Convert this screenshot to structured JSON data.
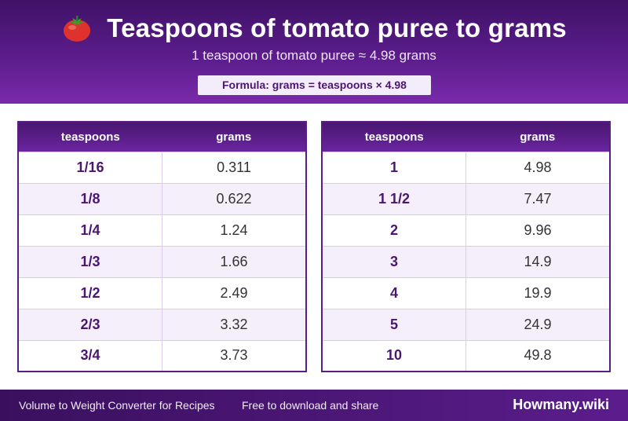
{
  "header": {
    "icon": "tomato-icon",
    "title": "Teaspoons of tomato puree to grams",
    "subtitle": "1 teaspoon of tomato puree ≈ 4.98 grams",
    "formula": "Formula: grams = teaspoons × 4.98"
  },
  "tables": {
    "left": {
      "col1": "teaspoons",
      "col2": "grams",
      "rows": [
        {
          "tsp": "1/16",
          "g": "0.311"
        },
        {
          "tsp": "1/8",
          "g": "0.622"
        },
        {
          "tsp": "1/4",
          "g": "1.24"
        },
        {
          "tsp": "1/3",
          "g": "1.66"
        },
        {
          "tsp": "1/2",
          "g": "2.49"
        },
        {
          "tsp": "2/3",
          "g": "3.32"
        },
        {
          "tsp": "3/4",
          "g": "3.73"
        }
      ]
    },
    "right": {
      "col1": "teaspoons",
      "col2": "grams",
      "rows": [
        {
          "tsp": "1",
          "g": "4.98"
        },
        {
          "tsp": "1 1/2",
          "g": "7.47"
        },
        {
          "tsp": "2",
          "g": "9.96"
        },
        {
          "tsp": "3",
          "g": "14.9"
        },
        {
          "tsp": "4",
          "g": "19.9"
        },
        {
          "tsp": "5",
          "g": "24.9"
        },
        {
          "tsp": "10",
          "g": "49.8"
        }
      ]
    }
  },
  "footer": {
    "left": "Volume to Weight Converter for Recipes",
    "middle": "Free to download and share",
    "brand": "Howmany.wiki"
  },
  "colors": {
    "header": "#5b1d8c",
    "accent": "#4a1670",
    "row_alt": "#f4effa"
  }
}
